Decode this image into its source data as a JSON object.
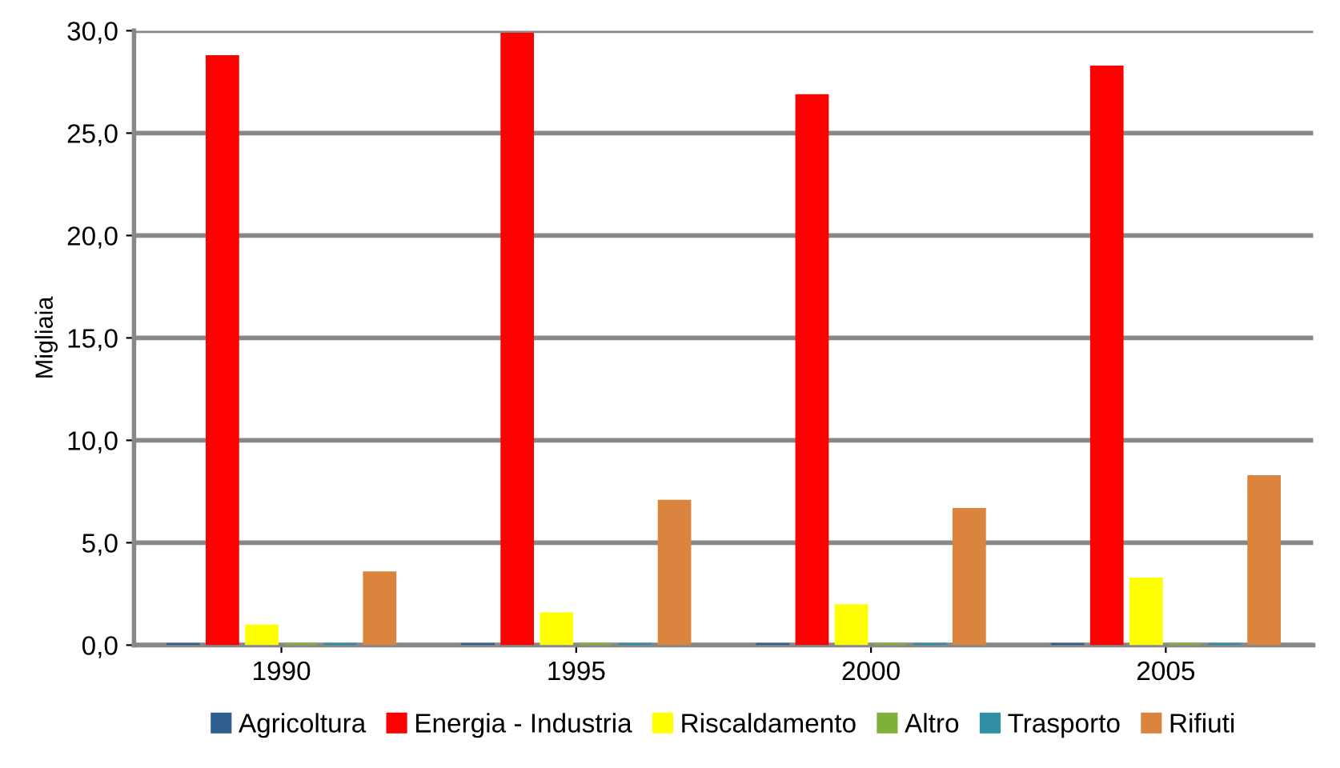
{
  "chart_data": {
    "type": "bar",
    "ylabel": "Migliaia",
    "categories": [
      "1990",
      "1995",
      "2000",
      "2005"
    ],
    "series": [
      {
        "name": "Agricoltura",
        "color": "#2e5f8f",
        "values": [
          0.1,
          0.1,
          0.1,
          0.1
        ]
      },
      {
        "name": "Energia - Industria",
        "color": "#ff0000",
        "values": [
          28.8,
          29.9,
          26.9,
          28.3
        ]
      },
      {
        "name": "Riscaldamento",
        "color": "#ffff00",
        "values": [
          1.0,
          1.6,
          2.0,
          3.3
        ]
      },
      {
        "name": "Altro",
        "color": "#7fb13a",
        "values": [
          0.1,
          0.1,
          0.1,
          0.1
        ]
      },
      {
        "name": "Trasporto",
        "color": "#2f8fa3",
        "values": [
          0.1,
          0.1,
          0.1,
          0.1
        ]
      },
      {
        "name": "Rifiuti",
        "color": "#db843d",
        "values": [
          3.6,
          7.1,
          6.7,
          8.3
        ]
      }
    ],
    "ylim": [
      0,
      30
    ],
    "yticks": [
      {
        "value": 0,
        "label": "0,0"
      },
      {
        "value": 5,
        "label": "5,0"
      },
      {
        "value": 10,
        "label": "10,0"
      },
      {
        "value": 15,
        "label": "15,0"
      },
      {
        "value": 20,
        "label": "20,0"
      },
      {
        "value": 25,
        "label": "25,0"
      },
      {
        "value": 30,
        "label": "30,0"
      }
    ],
    "grid": "y",
    "legend": "bottom"
  }
}
